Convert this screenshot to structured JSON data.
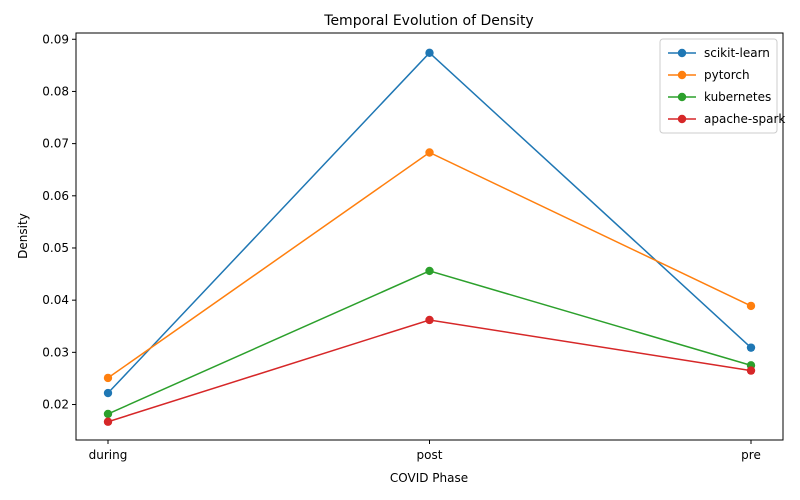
{
  "chart_data": {
    "type": "line",
    "title": "Temporal Evolution of Density",
    "xlabel": "COVID Phase",
    "ylabel": "Density",
    "categories": [
      "during",
      "post",
      "pre"
    ],
    "ylim": [
      0.0132,
      0.0912
    ],
    "yticks": [
      "0.02",
      "0.03",
      "0.04",
      "0.05",
      "0.06",
      "0.07",
      "0.08",
      "0.09"
    ],
    "legend_position": "top-right",
    "grid": false,
    "series": [
      {
        "name": "scikit-learn",
        "color": "#1f77b4",
        "values": [
          0.0222,
          0.0874,
          0.0309
        ]
      },
      {
        "name": "pytorch",
        "color": "#ff7f0e",
        "values": [
          0.0251,
          0.0683,
          0.0389
        ]
      },
      {
        "name": "kubernetes",
        "color": "#2ca02c",
        "values": [
          0.0182,
          0.0456,
          0.0275
        ]
      },
      {
        "name": "apache-spark",
        "color": "#d62728",
        "values": [
          0.0167,
          0.0362,
          0.0265
        ]
      }
    ]
  }
}
